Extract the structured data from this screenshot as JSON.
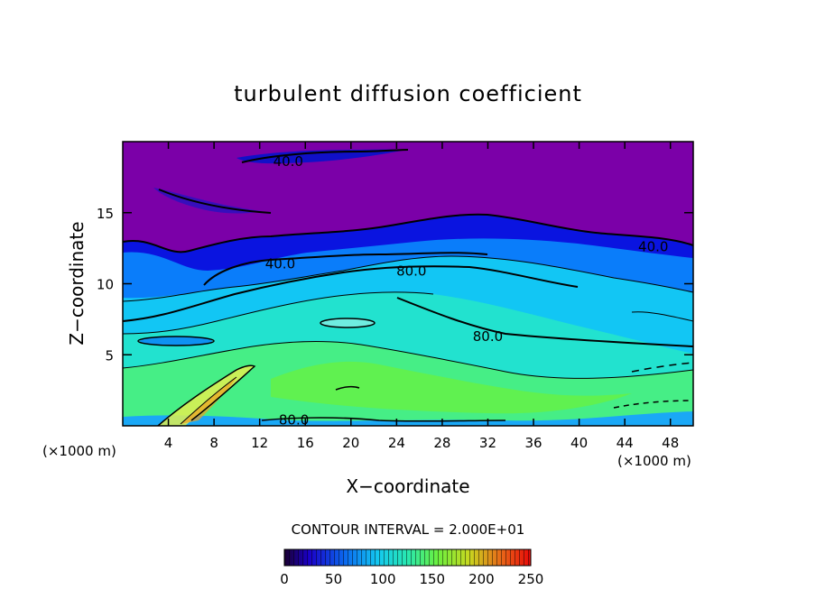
{
  "chart_data": {
    "type": "heatmap",
    "title": "turbulent diffusion coefficient",
    "xlabel": "X−coordinate",
    "ylabel": "Z−coordinate",
    "x_unit_left": "(×1000 m)",
    "x_unit_right": "(×1000 m)",
    "xlim": [
      0,
      50
    ],
    "ylim": [
      0,
      20
    ],
    "x_ticks": [
      4,
      8,
      12,
      16,
      20,
      24,
      28,
      32,
      36,
      40,
      44,
      48
    ],
    "x_tick_labels": [
      "4",
      "8",
      "12",
      "16",
      "20",
      "24",
      "28",
      "32",
      "36",
      "40",
      "44",
      "48"
    ],
    "y_ticks": [
      5,
      10,
      15
    ],
    "y_tick_labels": [
      "5",
      "10",
      "15"
    ],
    "contour_interval_text": "CONTOUR INTERVAL = 2.000E+01",
    "colorbar": {
      "range": [
        0,
        250
      ],
      "ticks": [
        0,
        50,
        100,
        150,
        200,
        250
      ],
      "tick_labels": [
        "0",
        "50",
        "100",
        "150",
        "200",
        "250"
      ]
    },
    "contour_labels": [
      {
        "text": "40.0",
        "x": 14.5,
        "y": 18.6
      },
      {
        "text": "40.0",
        "x": 13.8,
        "y": 11.4
      },
      {
        "text": "80.0",
        "x": 25.3,
        "y": 10.9
      },
      {
        "text": "40.0",
        "x": 46.5,
        "y": 12.6
      },
      {
        "text": "80.0",
        "x": 32.0,
        "y": 6.3
      },
      {
        "text": "80.0",
        "x": 15.0,
        "y": 0.4
      }
    ],
    "colors": {
      "top_layer": "#7b00a8",
      "dark_blue": "#0010e0",
      "mid_blue": "#0a7dfa",
      "cyan": "#12c6f4",
      "aqua": "#22e2cf",
      "green": "#4ef26a"
    }
  }
}
